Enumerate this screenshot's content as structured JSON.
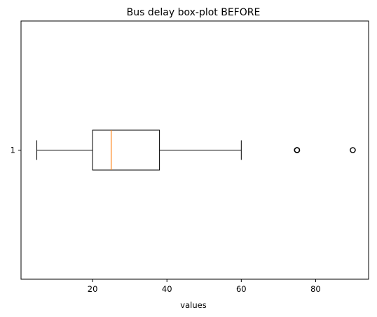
{
  "chart_data": {
    "type": "boxplot",
    "orientation": "horizontal",
    "title": "Bus delay box-plot BEFORE",
    "xlabel": "values",
    "ylabel": "",
    "xlim": [
      0.75,
      94.25
    ],
    "x_ticks": [
      20,
      40,
      60,
      80
    ],
    "x_tick_labels": [
      "20",
      "40",
      "60",
      "80"
    ],
    "y_tick_labels": [
      "1"
    ],
    "grid": false,
    "colors": {
      "box": "#000000",
      "median": "#ff7f0e",
      "whisker": "#000000",
      "outlier": "#000000"
    },
    "boxes": [
      {
        "label": "1",
        "whisker_low": 5,
        "q1": 20,
        "median": 25,
        "q3": 38,
        "whisker_high": 60,
        "outliers": [
          75,
          75,
          75,
          90
        ]
      }
    ]
  }
}
